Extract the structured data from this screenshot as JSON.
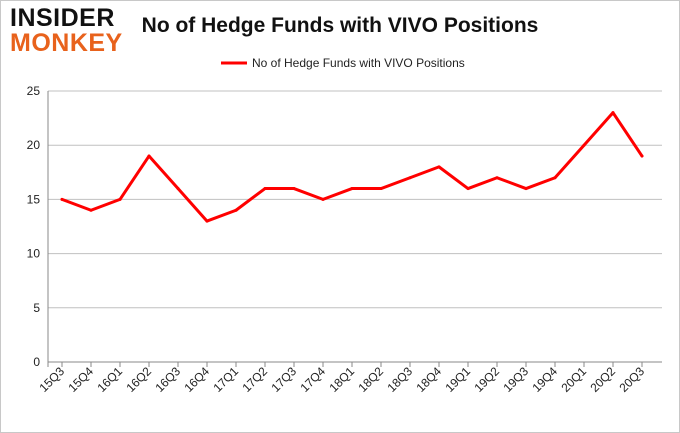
{
  "logo": {
    "line1": "INSIDER",
    "line2": "MONKEY"
  },
  "chart_data": {
    "type": "line",
    "title": "No of Hedge Funds with VIVO Positions",
    "xlabel": "",
    "ylabel": "",
    "categories": [
      "15Q3",
      "15Q4",
      "16Q1",
      "16Q2",
      "16Q3",
      "16Q4",
      "17Q1",
      "17Q2",
      "17Q3",
      "17Q4",
      "18Q1",
      "18Q2",
      "18Q3",
      "18Q4",
      "19Q1",
      "19Q2",
      "19Q3",
      "19Q4",
      "20Q1",
      "20Q2",
      "20Q3"
    ],
    "series": [
      {
        "name": "No of Hedge Funds with VIVO Positions",
        "color": "#ff0000",
        "values": [
          15,
          14,
          15,
          19,
          16,
          13,
          14,
          16,
          16,
          15,
          16,
          16,
          17,
          18,
          16,
          17,
          16,
          17,
          20,
          23,
          19
        ]
      }
    ],
    "ylim": [
      0,
      25
    ],
    "yticks": [
      0,
      5,
      10,
      15,
      20,
      25
    ],
    "grid": true,
    "legend": "top-center"
  }
}
